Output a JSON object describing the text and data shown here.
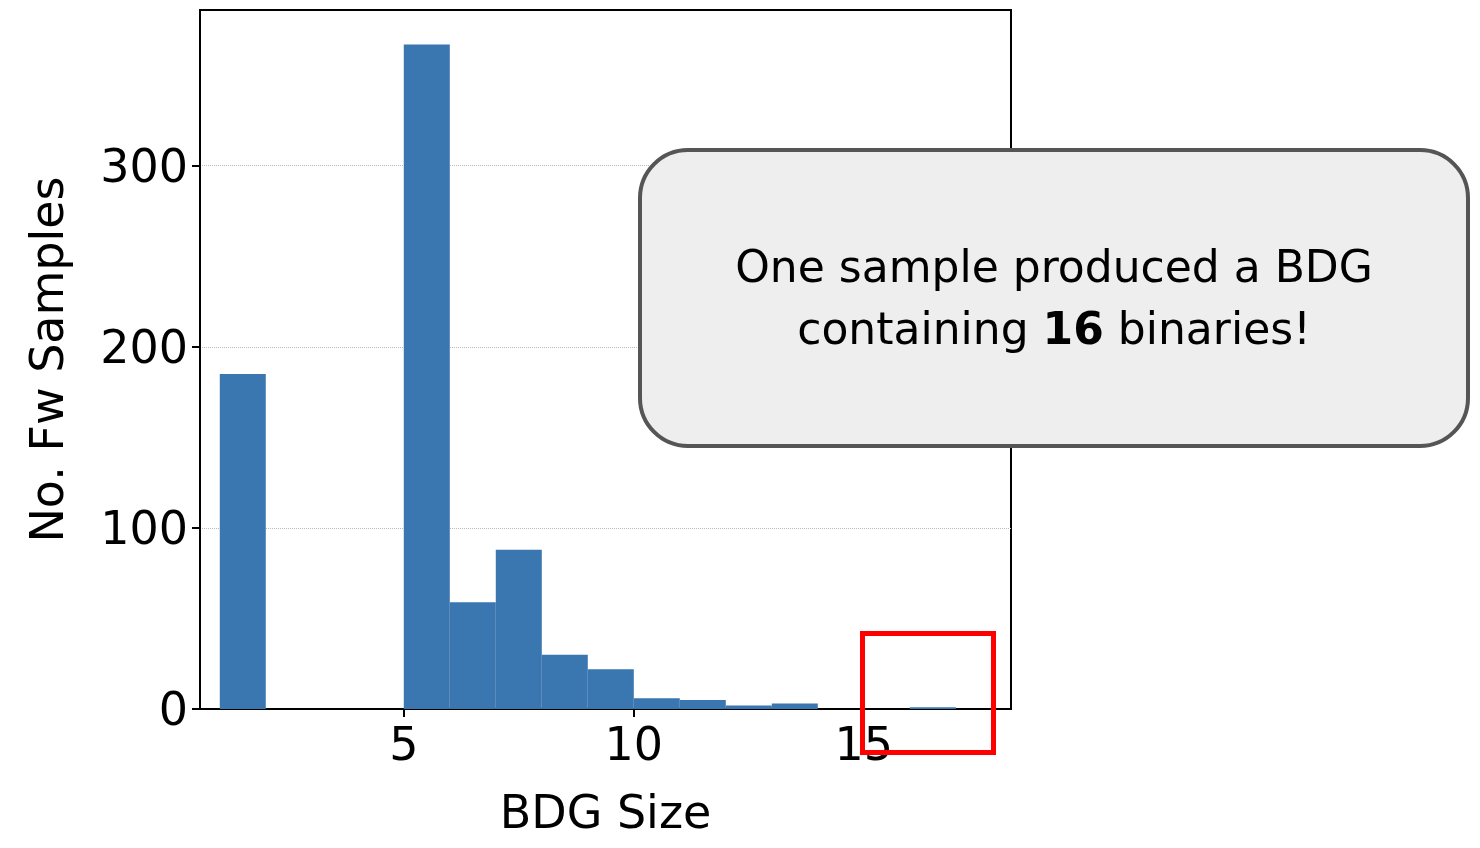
{
  "chart_data": {
    "type": "histogram",
    "xlabel": "BDG Size",
    "ylabel": "No. Fw Samples",
    "bins": [
      1,
      2,
      3,
      4,
      5,
      6,
      7,
      8,
      9,
      10,
      11,
      12,
      13,
      14,
      15,
      16,
      17
    ],
    "values": [
      185,
      0,
      0,
      0,
      367,
      59,
      88,
      30,
      22,
      6,
      5,
      2,
      3,
      0,
      0,
      1
    ],
    "color": "#3a76af",
    "xlim": [
      0.57,
      18.2
    ],
    "ylim": [
      0,
      386
    ],
    "xticks": [
      5,
      10,
      15
    ],
    "yticks": [
      0,
      100,
      200,
      300
    ],
    "grid": "y",
    "annotations": [
      "One sample produced a BDG containing 16 binaries!"
    ]
  }
}
